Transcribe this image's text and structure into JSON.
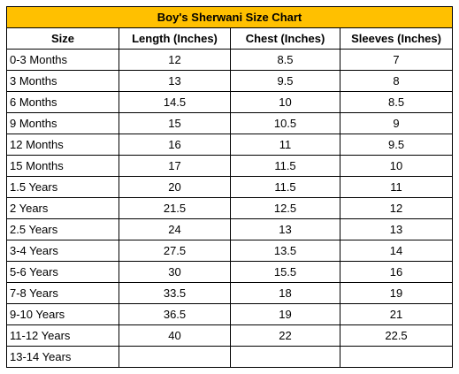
{
  "title": "Boy's Sherwani Size Chart",
  "headers": [
    "Size",
    "Length (Inches)",
    "Chest (Inches)",
    "Sleeves (Inches)"
  ],
  "rows": [
    [
      "0-3 Months",
      "12",
      "8.5",
      "7"
    ],
    [
      "3 Months",
      "13",
      "9.5",
      "8"
    ],
    [
      "6 Months",
      "14.5",
      "10",
      "8.5"
    ],
    [
      "9 Months",
      "15",
      "10.5",
      "9"
    ],
    [
      "12 Months",
      "16",
      "11",
      "9.5"
    ],
    [
      "15 Months",
      "17",
      "11.5",
      "10"
    ],
    [
      "1.5 Years",
      "20",
      "11.5",
      "11"
    ],
    [
      "2 Years",
      "21.5",
      "12.5",
      "12"
    ],
    [
      "2.5 Years",
      "24",
      "13",
      "13"
    ],
    [
      "3-4 Years",
      "27.5",
      "13.5",
      "14"
    ],
    [
      "5-6 Years",
      "30",
      "15.5",
      "16"
    ],
    [
      "7-8 Years",
      "33.5",
      "18",
      "19"
    ],
    [
      "9-10 Years",
      "36.5",
      "19",
      "21"
    ],
    [
      "11-12 Years",
      "40",
      "22",
      "22.5"
    ],
    [
      "13-14 Years",
      "",
      "",
      ""
    ]
  ],
  "colors": {
    "title_background": "#ffc000",
    "border": "#000000"
  }
}
